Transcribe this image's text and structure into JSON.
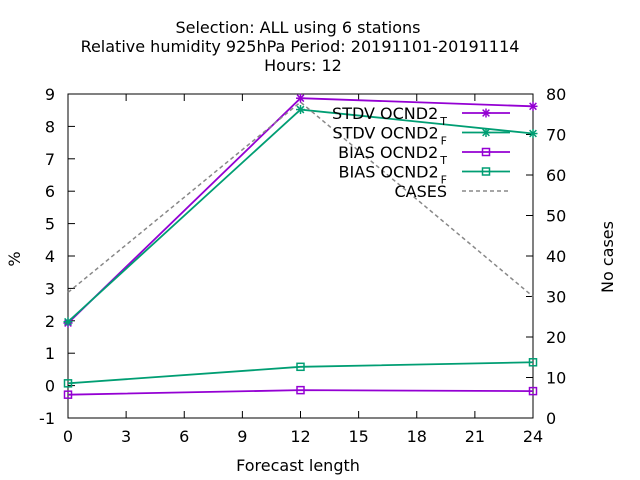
{
  "title": {
    "line1": "Selection: ALL using     6 stations",
    "line2": "Relative humidity 925hPa   Period: 20191101-20191114",
    "line3": "Hours:  12"
  },
  "colors": {
    "purple": "#9400d3",
    "green": "#009e73",
    "gray": "#888888"
  },
  "chart_data": {
    "type": "line",
    "title": "Selection: ALL using     6 stations / Relative humidity 925hPa   Period: 20191101-20191114 / Hours:  12",
    "xlabel": "Forecast length",
    "ylabel": "%",
    "y2label": "No cases",
    "x": [
      0,
      12,
      24
    ],
    "xlim": [
      0,
      24
    ],
    "ylim": [
      -1,
      9
    ],
    "y2lim": [
      0,
      80
    ],
    "xticks": [
      "0",
      "3",
      "6",
      "9",
      "12",
      "15",
      "18",
      "21",
      "24"
    ],
    "yticks": [
      "-1",
      "0",
      "1",
      "2",
      "3",
      "4",
      "5",
      "6",
      "7",
      "8",
      "9"
    ],
    "y2ticks": [
      "0",
      "10",
      "20",
      "30",
      "40",
      "50",
      "60",
      "70",
      "80"
    ],
    "grid": false,
    "legend_position": "top-right",
    "series": [
      {
        "name": "STDV OCND2",
        "subscript": "T",
        "axis": "y1",
        "color": "purple",
        "marker": "star",
        "dash": false,
        "values": [
          1.93,
          8.87,
          8.62
        ]
      },
      {
        "name": "STDV OCND2",
        "subscript": "F",
        "axis": "y1",
        "color": "green",
        "marker": "star",
        "dash": false,
        "values": [
          1.97,
          8.52,
          7.78
        ]
      },
      {
        "name": "BIAS OCND2",
        "subscript": "T",
        "axis": "y1",
        "color": "purple",
        "marker": "square",
        "dash": false,
        "values": [
          -0.28,
          -0.14,
          -0.17
        ]
      },
      {
        "name": "BIAS OCND2",
        "subscript": "F",
        "axis": "y1",
        "color": "green",
        "marker": "square",
        "dash": false,
        "values": [
          0.07,
          0.58,
          0.72
        ]
      },
      {
        "name": "CASES",
        "subscript": "",
        "axis": "y2",
        "color": "gray",
        "marker": "none",
        "dash": true,
        "values": [
          31,
          78,
          30
        ]
      }
    ]
  }
}
